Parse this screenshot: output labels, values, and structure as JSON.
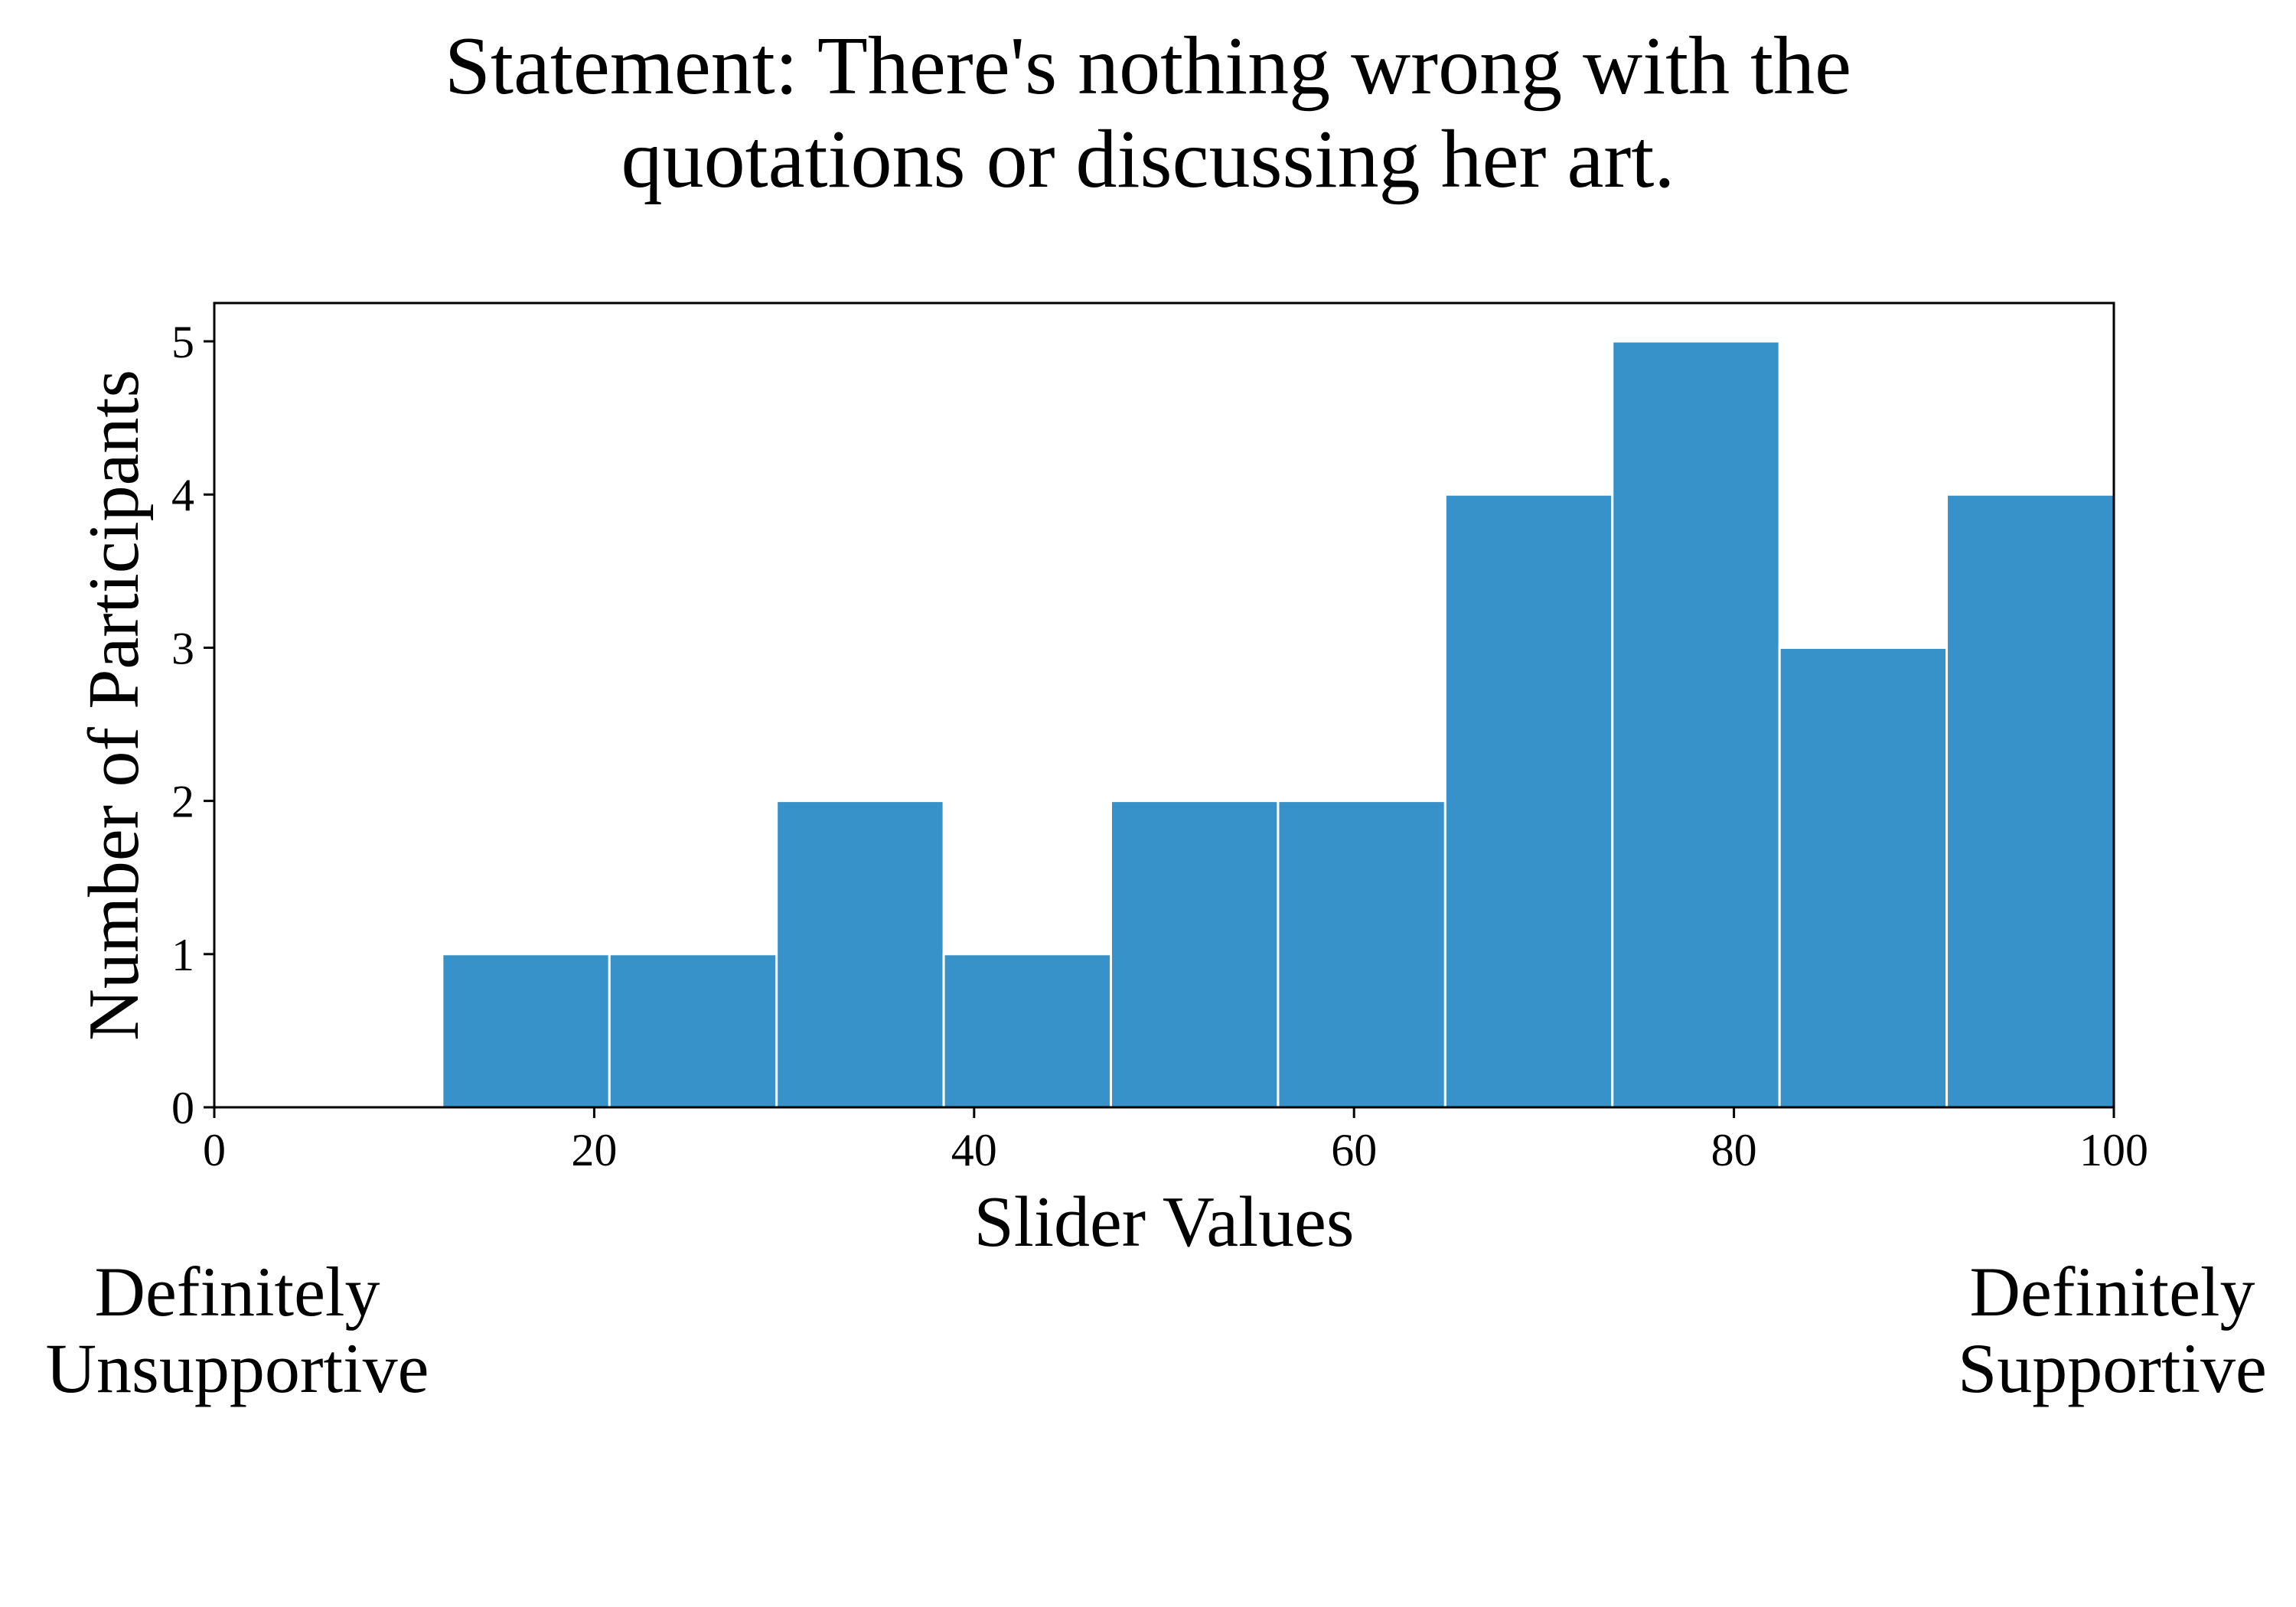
{
  "title": "Statement: There's nothing wrong with the\nquotations or discussing her art.",
  "scale_labels": {
    "left": "Definitely\nUnsupportive",
    "right": "Definitely\nSupportive"
  },
  "colors": {
    "bar": "#3692c8",
    "bar_edge": "#ffffff",
    "axis": "#000000"
  },
  "chart_data": {
    "type": "bar",
    "subtype": "histogram",
    "xlabel": "Slider Values",
    "ylabel": "Number of Participants",
    "xlim": [
      0,
      100
    ],
    "ylim": [
      0,
      5.25
    ],
    "xticks": [
      0,
      20,
      40,
      60,
      80,
      100
    ],
    "yticks": [
      0,
      1,
      2,
      3,
      4,
      5
    ],
    "grid": false,
    "bin_edges": [
      12,
      20.8,
      29.6,
      38.4,
      47.2,
      56,
      64.8,
      73.6,
      82.4,
      91.2,
      100
    ],
    "values": [
      1,
      1,
      2,
      1,
      2,
      2,
      4,
      5,
      3,
      4
    ]
  }
}
